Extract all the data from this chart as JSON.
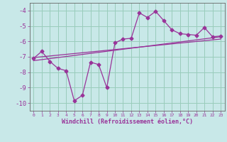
{
  "background_color": "#c8e8e8",
  "line_color": "#993399",
  "grid_color": "#99ccbb",
  "xlabel": "Windchill (Refroidissement éolien,°C)",
  "xlabel_color": "#993399",
  "tick_color": "#993399",
  "spine_color": "#666666",
  "xlim": [
    -0.5,
    23.5
  ],
  "ylim": [
    -10.5,
    -3.5
  ],
  "yticks": [
    -10,
    -9,
    -8,
    -7,
    -6,
    -5,
    -4
  ],
  "xticks": [
    0,
    1,
    2,
    3,
    4,
    5,
    6,
    7,
    8,
    9,
    10,
    11,
    12,
    13,
    14,
    15,
    16,
    17,
    18,
    19,
    20,
    21,
    22,
    23
  ],
  "line1_x": [
    0,
    1,
    2,
    3,
    4,
    5,
    6,
    7,
    8,
    9,
    10,
    11,
    12,
    13,
    14,
    15,
    16,
    17,
    18,
    19,
    20,
    21,
    22,
    23
  ],
  "line1_y": [
    -7.1,
    -6.65,
    -7.3,
    -7.75,
    -7.9,
    -9.85,
    -9.5,
    -7.35,
    -7.5,
    -9.0,
    -6.1,
    -5.85,
    -5.8,
    -4.15,
    -4.45,
    -4.05,
    -4.65,
    -5.25,
    -5.5,
    -5.55,
    -5.6,
    -5.1,
    -5.7,
    -5.65
  ],
  "line2_x": [
    0,
    23
  ],
  "line2_y": [
    -7.25,
    -5.7
  ],
  "line3_x": [
    0,
    23
  ],
  "line3_y": [
    -7.05,
    -5.85
  ]
}
